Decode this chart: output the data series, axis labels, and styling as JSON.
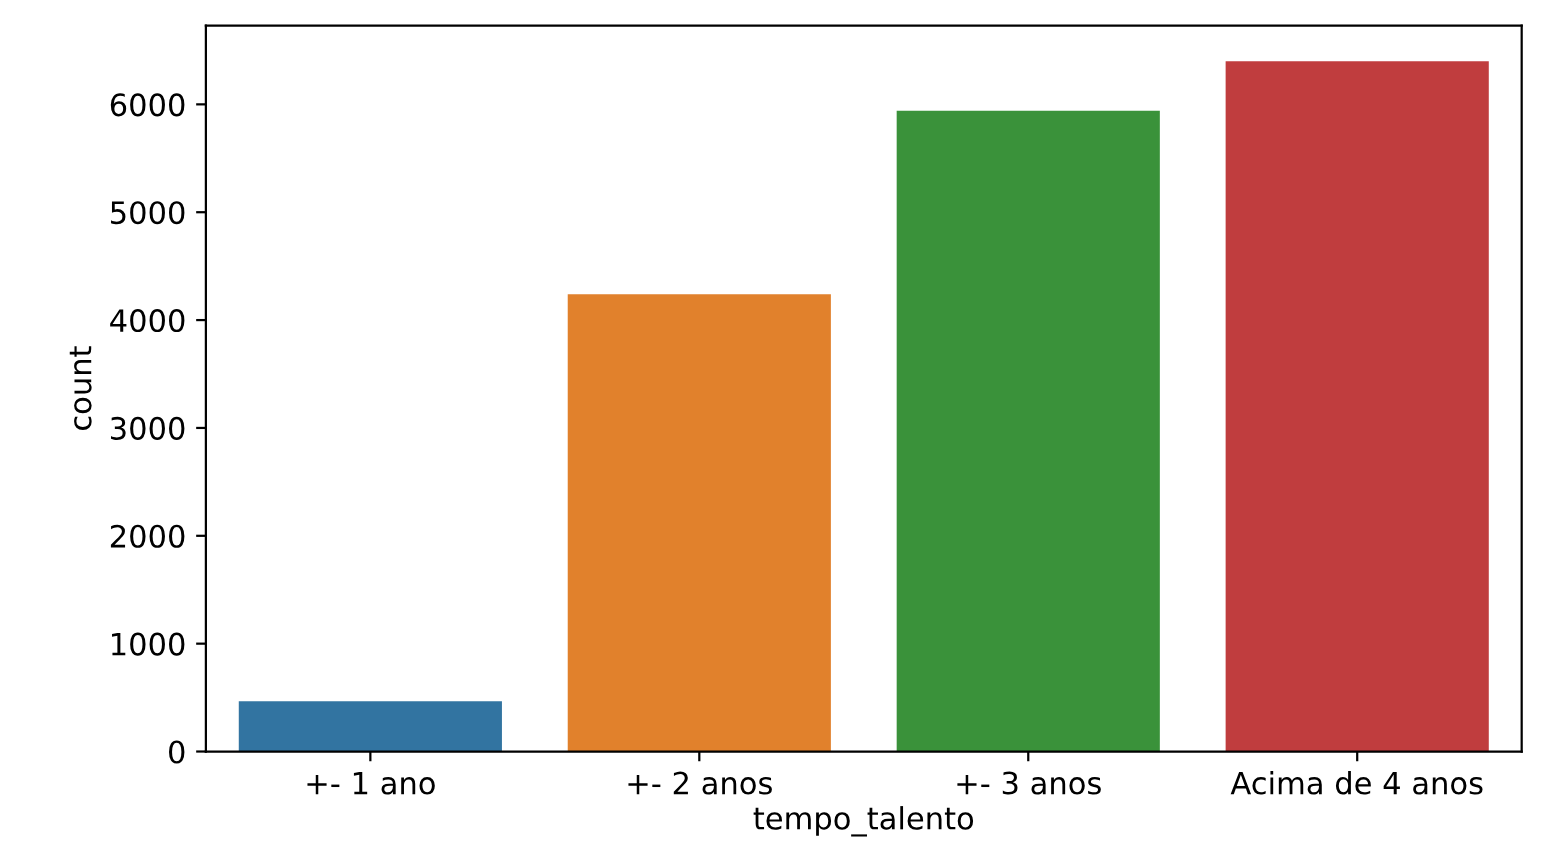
{
  "chart_data": {
    "type": "bar",
    "xlabel": "tempo_talento",
    "ylabel": "count",
    "categories": [
      "+- 1 ano",
      "+- 2 anos",
      "+- 3 anos",
      "Acima de 4 anos"
    ],
    "values": [
      467,
      4240,
      5940,
      6400
    ],
    "colors": [
      "#3274a1",
      "#e1812c",
      "#3a923a",
      "#c03d3e"
    ],
    "ylim": [
      0,
      6730
    ],
    "yticks": [
      0,
      1000,
      2000,
      3000,
      4000,
      5000,
      6000
    ],
    "grid": false,
    "legend": false
  }
}
